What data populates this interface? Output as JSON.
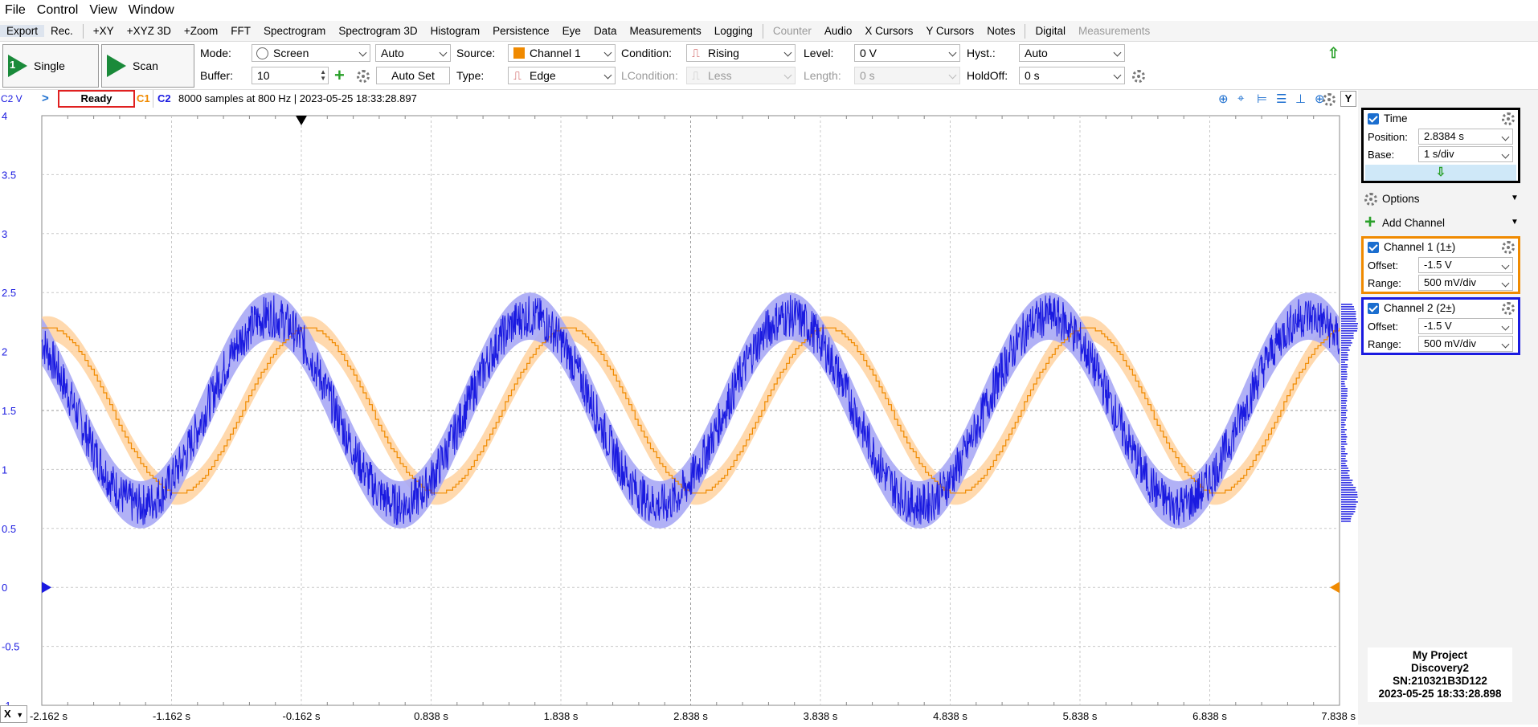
{
  "menu": [
    "File",
    "Control",
    "View",
    "Window"
  ],
  "tabs": [
    {
      "label": "Export",
      "active": true
    },
    {
      "label": "Rec."
    },
    {
      "label": "+XY"
    },
    {
      "label": "+XYZ 3D"
    },
    {
      "label": "+Zoom"
    },
    {
      "label": "FFT"
    },
    {
      "label": "Spectrogram"
    },
    {
      "label": "Spectrogram 3D"
    },
    {
      "label": "Histogram"
    },
    {
      "label": "Persistence"
    },
    {
      "label": "Eye"
    },
    {
      "label": "Data"
    },
    {
      "label": "Measurements"
    },
    {
      "label": "Logging"
    },
    {
      "label": "Counter",
      "dim": true
    },
    {
      "label": "Audio"
    },
    {
      "label": "X Cursors"
    },
    {
      "label": "Y Cursors"
    },
    {
      "label": "Notes"
    },
    {
      "label": "Digital"
    },
    {
      "label": "Measurements",
      "dim": true
    }
  ],
  "controls": {
    "single_label": "Single",
    "scan_label": "Scan",
    "mode_label": "Mode:",
    "mode_value": "Screen",
    "auto_value": "Auto",
    "buffer_label": "Buffer:",
    "buffer_value": "10",
    "autoset_label": "Auto Set",
    "source_label": "Source:",
    "source_value": "Channel 1",
    "type_label": "Type:",
    "type_value": "Edge",
    "condition_label": "Condition:",
    "condition_value": "Rising",
    "lcondition_label": "LCondition:",
    "lcondition_value": "Less",
    "level_label": "Level:",
    "level_value": "0 V",
    "length_label": "Length:",
    "length_value": "0 s",
    "hyst_label": "Hyst.:",
    "hyst_value": "Auto",
    "holdoff_label": "HoldOff:",
    "holdoff_value": "0 s"
  },
  "status": {
    "axis_channel": "C2 V",
    "state": "Ready",
    "c1": "C1",
    "c2": "C2",
    "info": "8000 samples at 800 Hz | 2023-05-25 18:33:28.897",
    "y_button": "Y"
  },
  "colors": {
    "c1": "#f08a00",
    "c2": "#1a1ae0",
    "c1_band": "#ffd2a0",
    "c2_band": "#a8a8f5",
    "time_box": "#000000",
    "ch1_box": "#f08a00",
    "ch2_box": "#1a1ae0"
  },
  "plot": {
    "y_ticks": [
      "4",
      "3.5",
      "3",
      "2.5",
      "2",
      "1.5",
      "1",
      "0.5",
      "0",
      "-0.5",
      "-1"
    ],
    "x_ticks": [
      "-2.162 s",
      "-1.162 s",
      "-0.162 s",
      "0.838 s",
      "1.838 s",
      "2.838 s",
      "3.838 s",
      "4.838 s",
      "5.838 s",
      "6.838 s",
      "7.838 s"
    ],
    "x_button": "X"
  },
  "chart_data": {
    "type": "line",
    "x_range": [
      -2.162,
      7.838
    ],
    "y_range": [
      -1,
      4
    ],
    "x_unit": "s",
    "y_unit": "V",
    "grid": true,
    "series": [
      {
        "name": "C1",
        "color": "#f08a00",
        "offset_v": 1.5,
        "amplitude_v": 0.7,
        "period_s": 2.0,
        "peak_time_s": -0.12
      },
      {
        "name": "C2",
        "color": "#1a1ae0",
        "offset_v": 1.5,
        "amplitude_v": 0.8,
        "period_s": 2.0,
        "peak_time_s": -0.4
      }
    ]
  },
  "panel": {
    "time_title": "Time",
    "position_label": "Position:",
    "position_value": "2.8384 s",
    "base_label": "Base:",
    "base_value": "1 s/div",
    "options_label": "Options",
    "add_channel_label": "Add Channel",
    "ch1_title": "Channel 1 (1±)",
    "ch1_offset_label": "Offset:",
    "ch1_offset_value": "-1.5 V",
    "ch1_range_label": "Range:",
    "ch1_range_value": "500 mV/div",
    "ch2_title": "Channel 2 (2±)",
    "ch2_offset_label": "Offset:",
    "ch2_offset_value": "-1.5 V",
    "ch2_range_label": "Range:",
    "ch2_range_value": "500 mV/div"
  },
  "device_info": {
    "project": "My Project",
    "device": "Discovery2",
    "serial": "SN:210321B3D122",
    "timestamp": "2023-05-25 18:33:28.898"
  }
}
